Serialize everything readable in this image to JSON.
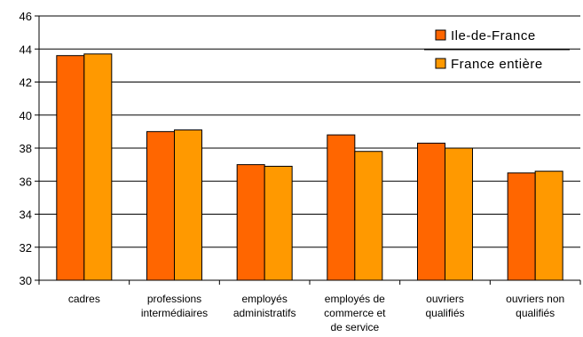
{
  "chart_data": {
    "type": "bar",
    "categories": [
      [
        "cadres"
      ],
      [
        "professions",
        "intermédiaires"
      ],
      [
        "employés",
        "administratifs"
      ],
      [
        "employés de",
        "commerce et",
        "de service"
      ],
      [
        "ouvriers",
        "qualifiés"
      ],
      [
        "ouvriers non",
        "qualifiés"
      ]
    ],
    "series": [
      {
        "name": "Ile-de-France",
        "values": [
          43.6,
          39.0,
          37.0,
          38.8,
          38.3,
          36.5
        ],
        "color": "#FF6600"
      },
      {
        "name": "France entière",
        "values": [
          43.7,
          39.1,
          36.9,
          37.8,
          38.0,
          36.6
        ],
        "color": "#FF9900"
      }
    ],
    "ylim": [
      30,
      46
    ],
    "yticks": [
      30,
      32,
      34,
      36,
      38,
      40,
      42,
      44,
      46
    ],
    "grid": true,
    "legend_position": "top-right"
  }
}
